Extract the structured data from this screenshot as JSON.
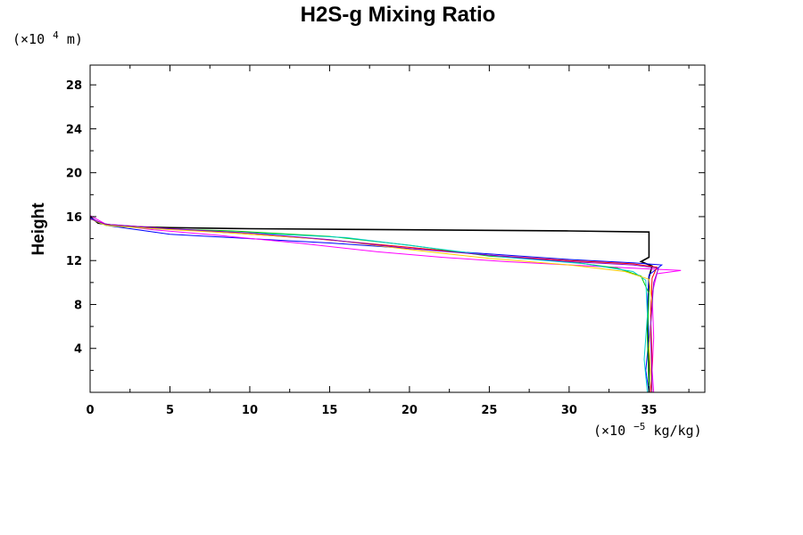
{
  "chart_data": {
    "type": "line",
    "title": "H2S-g Mixing Ratio",
    "ylabel": "Height",
    "y_unit": {
      "prefix": "(×10",
      "exp": "4",
      "suffix": " m)"
    },
    "x_unit": {
      "prefix": "(×10",
      "exp": "−5",
      "suffix": " kg/kg)"
    },
    "xlim": [
      0,
      38.5
    ],
    "ylim": [
      0,
      29.8
    ],
    "x_ticks": [
      0,
      5,
      10,
      15,
      20,
      25,
      30,
      35
    ],
    "y_ticks": [
      4,
      8,
      12,
      16,
      20,
      24,
      28
    ],
    "x_minor_step": 2.5,
    "y_minor_step": 2,
    "series": [
      {
        "color": "#000000",
        "points": [
          [
            0,
            16
          ],
          [
            0.5,
            15.4
          ],
          [
            2,
            15.1
          ],
          [
            5,
            15.0
          ],
          [
            10,
            14.9
          ],
          [
            20,
            14.8
          ],
          [
            30,
            14.7
          ],
          [
            35,
            14.6
          ],
          [
            35,
            12.3
          ],
          [
            34.5,
            11.9
          ],
          [
            35.2,
            11.5
          ],
          [
            35,
            10.5
          ],
          [
            34.9,
            6
          ],
          [
            35,
            2
          ],
          [
            35,
            0
          ]
        ]
      },
      {
        "color": "#0000ff",
        "points": [
          [
            0,
            15.9
          ],
          [
            1,
            15.2
          ],
          [
            3,
            14.8
          ],
          [
            5,
            14.4
          ],
          [
            10,
            14.0
          ],
          [
            15,
            13.6
          ],
          [
            20,
            13.1
          ],
          [
            25,
            12.6
          ],
          [
            30,
            12.1
          ],
          [
            34,
            11.8
          ],
          [
            35.8,
            11.6
          ],
          [
            35,
            10.7
          ],
          [
            34.9,
            8
          ],
          [
            35,
            5
          ],
          [
            34.8,
            2
          ],
          [
            35,
            0
          ]
        ]
      },
      {
        "color": "#ff00ff",
        "points": [
          [
            0,
            29.8
          ],
          [
            0,
            16.1
          ],
          [
            1,
            15.3
          ],
          [
            4,
            14.8
          ],
          [
            8,
            14.3
          ],
          [
            13,
            13.6
          ],
          [
            18,
            12.8
          ],
          [
            22,
            12.3
          ],
          [
            26,
            11.9
          ],
          [
            30,
            11.6
          ],
          [
            34,
            11.3
          ],
          [
            37,
            11.1
          ],
          [
            35.5,
            10.8
          ],
          [
            35.2,
            9
          ],
          [
            35.3,
            5
          ],
          [
            35.2,
            2
          ],
          [
            35.3,
            0
          ]
        ]
      },
      {
        "color": "#ff0000",
        "points": [
          [
            0,
            15.8
          ],
          [
            1,
            15.3
          ],
          [
            4,
            15.0
          ],
          [
            8,
            14.6
          ],
          [
            14,
            14.0
          ],
          [
            20,
            13.2
          ],
          [
            25,
            12.5
          ],
          [
            30,
            12.0
          ],
          [
            34,
            11.7
          ],
          [
            35.5,
            11.4
          ],
          [
            35.2,
            10.4
          ],
          [
            35.1,
            7
          ],
          [
            35.2,
            3
          ],
          [
            35.1,
            0
          ]
        ]
      },
      {
        "color": "#00cc00",
        "points": [
          [
            0,
            15.8
          ],
          [
            1,
            15.2
          ],
          [
            4,
            14.9
          ],
          [
            9,
            14.7
          ],
          [
            15,
            14.2
          ],
          [
            20,
            13.4
          ],
          [
            25,
            12.4
          ],
          [
            30,
            11.9
          ],
          [
            33,
            11.3
          ],
          [
            34.5,
            10.6
          ],
          [
            35,
            9
          ],
          [
            34.9,
            5
          ],
          [
            35,
            0
          ]
        ]
      },
      {
        "color": "#00cccc",
        "points": [
          [
            0,
            15.8
          ],
          [
            1,
            15.2
          ],
          [
            4,
            14.9
          ],
          [
            9,
            14.6
          ],
          [
            16,
            14.1
          ],
          [
            21,
            13.2
          ],
          [
            26,
            12.3
          ],
          [
            31,
            11.7
          ],
          [
            34,
            11.0
          ],
          [
            34.8,
            10.2
          ],
          [
            34.9,
            7
          ],
          [
            34.7,
            3
          ],
          [
            34.9,
            0
          ]
        ]
      },
      {
        "color": "#ffcc00",
        "points": [
          [
            0,
            15.8
          ],
          [
            1,
            15.2
          ],
          [
            4,
            14.9
          ],
          [
            9,
            14.5
          ],
          [
            15,
            13.9
          ],
          [
            20,
            13.0
          ],
          [
            25,
            12.2
          ],
          [
            30,
            11.6
          ],
          [
            33.5,
            11.0
          ],
          [
            35,
            10.3
          ],
          [
            35.2,
            8
          ],
          [
            35.0,
            4
          ],
          [
            35.2,
            0
          ]
        ]
      },
      {
        "color": "#8800cc",
        "points": [
          [
            0,
            15.8
          ],
          [
            1,
            15.3
          ],
          [
            5,
            14.9
          ],
          [
            10,
            14.5
          ],
          [
            15,
            13.9
          ],
          [
            20,
            13.1
          ],
          [
            25,
            12.5
          ],
          [
            30,
            11.9
          ],
          [
            34,
            11.6
          ],
          [
            35.6,
            11.3
          ],
          [
            35.3,
            10.0
          ],
          [
            35.1,
            6
          ],
          [
            35.2,
            0
          ]
        ]
      }
    ]
  }
}
